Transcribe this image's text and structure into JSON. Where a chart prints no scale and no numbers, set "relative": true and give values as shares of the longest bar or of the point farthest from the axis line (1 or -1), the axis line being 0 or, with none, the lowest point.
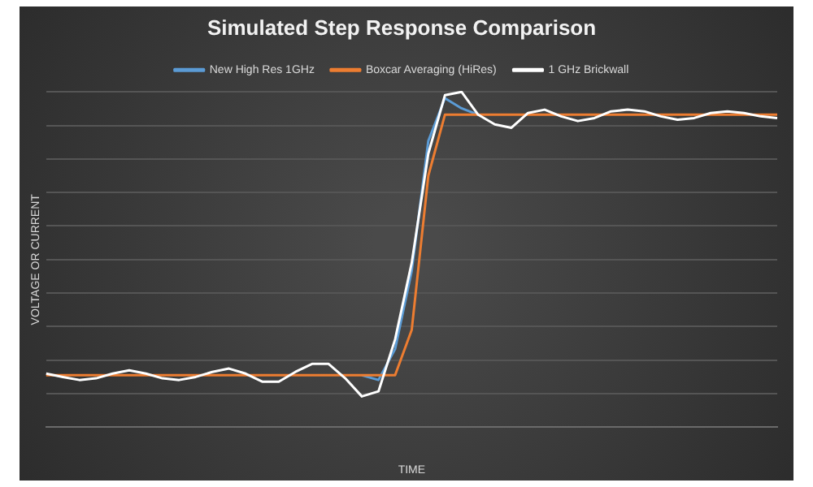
{
  "chart_data": {
    "type": "line",
    "title": "Simulated Step Response Comparison",
    "xlabel": "TIME",
    "ylabel": "VOLTAGE OR CURRENT",
    "relative": true,
    "grid": "y",
    "legend": "top",
    "marker": "none",
    "categories": [
      null,
      null,
      null,
      null,
      null,
      null,
      null,
      null,
      null,
      null,
      null,
      null,
      null,
      null,
      null,
      null,
      null,
      null,
      null,
      null,
      null,
      null,
      null,
      null,
      null,
      null,
      null,
      null,
      null,
      null,
      null,
      null,
      null,
      null,
      null,
      null,
      null,
      null,
      null,
      null,
      null,
      null,
      null,
      null,
      null
    ],
    "series": [
      {
        "name": "New High Res 1GHz",
        "color": "#5b9bd5",
        "values": [
          null,
          null,
          null,
          null,
          null,
          null,
          null,
          null,
          null,
          null,
          null,
          null,
          null,
          null,
          null,
          null,
          null,
          null,
          null,
          0.155,
          0.141,
          0.233,
          0.466,
          0.854,
          0.981,
          0.951,
          0.932,
          null,
          null,
          null,
          null,
          null,
          null,
          null,
          null,
          null,
          null,
          null,
          null,
          null,
          null,
          null,
          null,
          null,
          null
        ]
      },
      {
        "name": "Boxcar Averaging (HiRes)",
        "color": "#ed7d31",
        "values": [
          0.155,
          0.155,
          0.155,
          0.155,
          0.155,
          0.155,
          0.155,
          0.155,
          0.155,
          0.155,
          0.155,
          0.155,
          0.155,
          0.155,
          0.155,
          0.155,
          0.155,
          0.155,
          0.155,
          0.155,
          0.155,
          0.155,
          0.29,
          0.75,
          0.932,
          0.932,
          0.932,
          0.932,
          0.932,
          0.932,
          0.932,
          0.932,
          0.932,
          0.932,
          0.932,
          0.932,
          0.932,
          0.932,
          0.932,
          0.932,
          0.932,
          0.932,
          0.932,
          0.932,
          0.932
        ]
      },
      {
        "name": "1 GHz Brickwall",
        "color": "#ffffff",
        "values": [
          0.16,
          0.15,
          0.141,
          0.146,
          0.16,
          0.17,
          0.16,
          0.146,
          0.141,
          0.15,
          0.165,
          0.175,
          0.16,
          0.136,
          0.136,
          0.165,
          0.189,
          0.189,
          0.146,
          0.092,
          0.107,
          0.262,
          0.49,
          0.816,
          0.99,
          1.0,
          0.932,
          0.903,
          0.893,
          0.937,
          0.947,
          0.927,
          0.913,
          0.922,
          0.942,
          0.947,
          0.942,
          0.927,
          0.917,
          0.922,
          0.937,
          0.942,
          0.937,
          0.927,
          0.922
        ]
      }
    ]
  }
}
